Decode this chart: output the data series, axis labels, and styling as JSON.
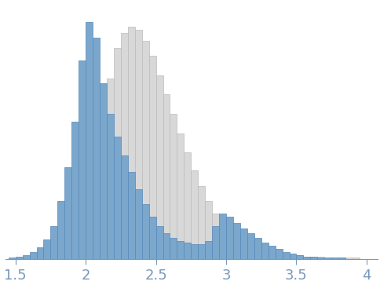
{
  "blue_bin_edges": [
    1.45,
    1.5,
    1.55,
    1.6,
    1.65,
    1.7,
    1.75,
    1.8,
    1.85,
    1.9,
    1.95,
    2.0,
    2.05,
    2.1,
    2.15,
    2.2,
    2.25,
    2.3,
    2.35,
    2.4,
    2.45,
    2.5,
    2.55,
    2.6,
    2.65,
    2.7,
    2.75,
    2.8,
    2.85,
    2.9,
    2.95,
    3.0,
    3.05,
    3.1,
    3.15,
    3.2,
    3.25,
    3.3,
    3.35,
    3.4,
    3.45,
    3.5,
    3.55,
    3.6,
    3.65,
    3.7,
    3.75,
    3.8,
    3.85,
    3.9,
    3.95
  ],
  "blue_counts": [
    1,
    2,
    3,
    5,
    8,
    13,
    22,
    38,
    60,
    90,
    130,
    155,
    145,
    115,
    95,
    80,
    68,
    57,
    46,
    36,
    28,
    22,
    17,
    14,
    12,
    11,
    10,
    10,
    12,
    22,
    30,
    28,
    24,
    20,
    17,
    14,
    11,
    9,
    7,
    5,
    4,
    3,
    2,
    2,
    1,
    1,
    1,
    1,
    0,
    0,
    0
  ],
  "gray_bin_edges": [
    2.1,
    2.15,
    2.2,
    2.25,
    2.3,
    2.35,
    2.4,
    2.45,
    2.5,
    2.55,
    2.6,
    2.65,
    2.7,
    2.75,
    2.8,
    2.85,
    2.9,
    2.95,
    3.0,
    3.05,
    3.1,
    3.15,
    3.2,
    3.25,
    3.3,
    3.35,
    3.4,
    3.45,
    3.5,
    3.55,
    3.6,
    3.65,
    3.7,
    3.75,
    3.8,
    3.85,
    3.9,
    3.95,
    4.0
  ],
  "gray_counts": [
    95,
    118,
    138,
    148,
    152,
    150,
    143,
    133,
    120,
    108,
    95,
    82,
    70,
    58,
    48,
    38,
    30,
    25,
    20,
    16,
    13,
    11,
    9,
    7,
    6,
    5,
    4,
    3,
    3,
    2,
    2,
    2,
    1,
    1,
    1,
    1,
    1,
    0,
    0
  ],
  "blue_color": "#7ba7cc",
  "blue_edge_color": "#5588bb",
  "gray_color": "#d8d8d8",
  "gray_edge_color": "#bbbbbb",
  "xlim": [
    1.43,
    4.08
  ],
  "ylim": [
    0,
    168
  ],
  "xticks": [
    1.5,
    2.0,
    2.5,
    3.0,
    3.5,
    4.0
  ],
  "xtick_labels": [
    "1.5",
    "2",
    "2.5",
    "3",
    "3.5",
    "4"
  ],
  "tick_color": "#7799bb",
  "tick_fontsize": 13,
  "spine_color": "#7799bb",
  "background_color": "#ffffff",
  "bin_width": 0.05
}
